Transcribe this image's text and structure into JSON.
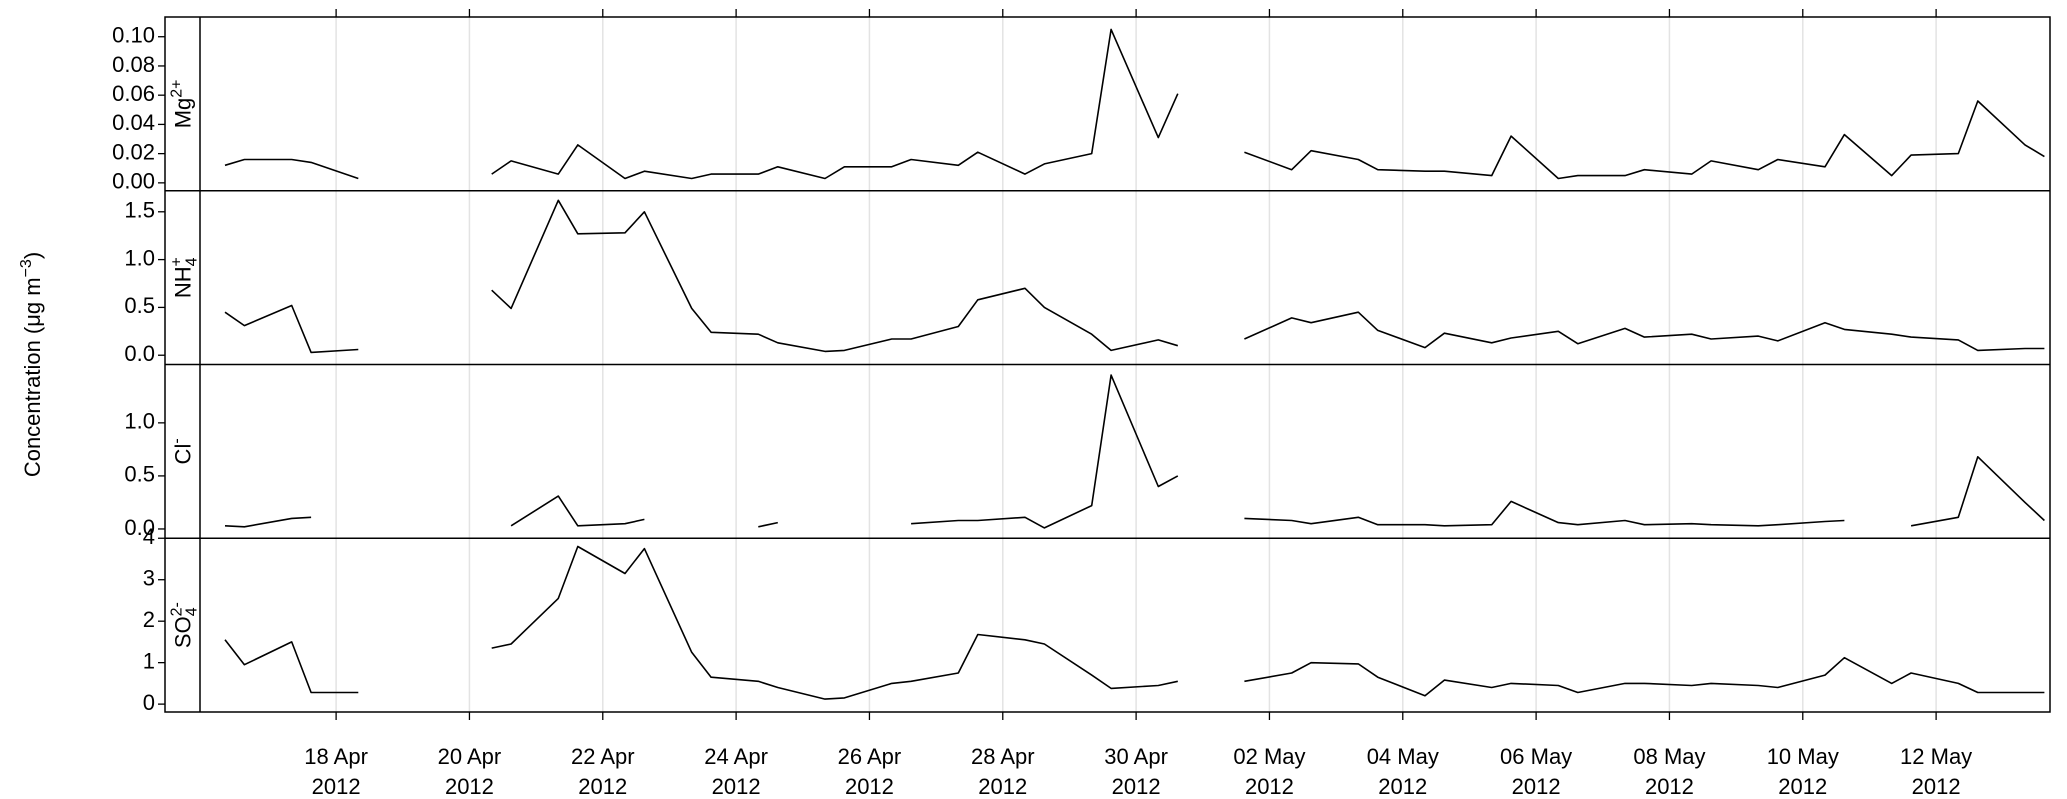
{
  "chart_data": {
    "type": "line",
    "y_label": {
      "base": "Concentration  (μg m",
      "sup": "−3",
      "tail": ")"
    },
    "grid": "x",
    "color": "#000000",
    "xlim": [
      "2012-04-15 23:00",
      "2012-05-13 17:00"
    ],
    "xticks": [
      {
        "value": "2012-04-18",
        "label": "18 Apr 2012"
      },
      {
        "value": "2012-04-20",
        "label": "20 Apr 2012"
      },
      {
        "value": "2012-04-22",
        "label": "22 Apr 2012"
      },
      {
        "value": "2012-04-24",
        "label": "24 Apr 2012"
      },
      {
        "value": "2012-04-26",
        "label": "26 Apr 2012"
      },
      {
        "value": "2012-04-28",
        "label": "28 Apr 2012"
      },
      {
        "value": "2012-04-30",
        "label": "30 Apr 2012"
      },
      {
        "value": "2012-05-02",
        "label": "02 May 2012"
      },
      {
        "value": "2012-05-04",
        "label": "04 May 2012"
      },
      {
        "value": "2012-05-06",
        "label": "06 May 2012"
      },
      {
        "value": "2012-05-08",
        "label": "08 May 2012"
      },
      {
        "value": "2012-05-10",
        "label": "10 May 2012"
      },
      {
        "value": "2012-05-12",
        "label": "12 May 2012"
      }
    ],
    "x": [
      "2012-04-16 08:00",
      "2012-04-16 15:00",
      "2012-04-17 08:00",
      "2012-04-17 15:00",
      "2012-04-18 08:00",
      "2012-04-18 15:00",
      "2012-04-19 08:00",
      "2012-04-19 15:00",
      "2012-04-20 08:00",
      "2012-04-20 15:00",
      "2012-04-21 08:00",
      "2012-04-21 15:00",
      "2012-04-22 08:00",
      "2012-04-22 15:00",
      "2012-04-23 08:00",
      "2012-04-23 15:00",
      "2012-04-24 08:00",
      "2012-04-24 15:00",
      "2012-04-25 08:00",
      "2012-04-25 15:00",
      "2012-04-26 08:00",
      "2012-04-26 15:00",
      "2012-04-27 08:00",
      "2012-04-27 15:00",
      "2012-04-28 08:00",
      "2012-04-28 15:00",
      "2012-04-29 08:00",
      "2012-04-29 15:00",
      "2012-04-30 08:00",
      "2012-04-30 15:00",
      "2012-05-01 08:00",
      "2012-05-01 15:00",
      "2012-05-02 08:00",
      "2012-05-02 15:00",
      "2012-05-03 08:00",
      "2012-05-03 15:00",
      "2012-05-04 08:00",
      "2012-05-04 15:00",
      "2012-05-05 08:00",
      "2012-05-05 15:00",
      "2012-05-06 08:00",
      "2012-05-06 15:00",
      "2012-05-07 08:00",
      "2012-05-07 15:00",
      "2012-05-08 08:00",
      "2012-05-08 15:00",
      "2012-05-09 08:00",
      "2012-05-09 15:00",
      "2012-05-10 08:00",
      "2012-05-10 15:00",
      "2012-05-11 08:00",
      "2012-05-11 15:00",
      "2012-05-12 08:00",
      "2012-05-12 15:00",
      "2012-05-13 08:00",
      "2012-05-13 15:00"
    ],
    "panels": [
      {
        "label": {
          "base": "Mg",
          "sup": "2+"
        },
        "ylim": [
          -0.0054,
          0.1135
        ],
        "yticks": [
          {
            "value": 0,
            "label": "0.00"
          },
          0.02,
          0.04,
          0.06,
          0.08,
          {
            "value": 0.1,
            "label": "0.10"
          }
        ],
        "values": [
          0.012,
          0.016,
          0.016,
          0.014,
          0.003,
          null,
          null,
          null,
          0.006,
          0.015,
          0.006,
          0.026,
          0.003,
          0.008,
          0.003,
          0.006,
          0.006,
          0.011,
          0.003,
          0.011,
          0.011,
          0.016,
          0.012,
          0.021,
          0.006,
          0.013,
          0.02,
          0.105,
          0.031,
          0.061,
          null,
          0.021,
          0.009,
          0.022,
          0.016,
          0.009,
          0.008,
          0.008,
          0.005,
          0.032,
          0.003,
          0.005,
          0.005,
          0.009,
          0.006,
          0.015,
          0.009,
          0.016,
          0.011,
          0.033,
          0.005,
          0.019,
          0.02,
          0.056,
          0.026,
          0.018
        ]
      },
      {
        "label": {
          "base": "NH",
          "sub": "4",
          "sup": "+"
        },
        "ylim": [
          -0.097,
          1.72
        ],
        "yticks": [
          {
            "value": 0,
            "label": "0.0"
          },
          0.5,
          {
            "value": 1,
            "label": "1.0"
          },
          1.5
        ],
        "values": [
          0.45,
          0.31,
          0.52,
          0.03,
          0.06,
          null,
          null,
          null,
          0.68,
          0.49,
          1.62,
          1.27,
          1.28,
          1.5,
          0.49,
          0.24,
          0.22,
          0.13,
          0.04,
          0.05,
          0.17,
          0.17,
          0.3,
          0.58,
          0.7,
          0.5,
          0.22,
          0.05,
          0.16,
          0.1,
          null,
          0.17,
          0.39,
          0.34,
          0.45,
          0.26,
          0.08,
          0.23,
          0.13,
          0.18,
          0.25,
          0.12,
          0.28,
          0.19,
          0.22,
          0.17,
          0.2,
          0.15,
          0.34,
          0.27,
          0.22,
          0.19,
          0.16,
          0.05,
          0.07,
          0.07
        ]
      },
      {
        "label": {
          "base": "Cl",
          "sup": "-"
        },
        "ylim": [
          -0.0875,
          1.55
        ],
        "yticks": [
          {
            "value": 0,
            "label": "0.0"
          },
          0.5,
          {
            "value": 1,
            "label": "1.0"
          }
        ],
        "values": [
          0.03,
          0.02,
          0.1,
          0.11,
          null,
          null,
          null,
          null,
          null,
          0.03,
          0.31,
          0.03,
          0.05,
          0.09,
          null,
          null,
          0.02,
          0.06,
          null,
          null,
          null,
          0.05,
          0.08,
          0.08,
          0.11,
          0.01,
          0.22,
          1.45,
          0.4,
          0.5,
          null,
          0.1,
          0.08,
          0.05,
          0.11,
          0.04,
          0.04,
          0.03,
          0.04,
          0.26,
          0.06,
          0.04,
          0.08,
          0.04,
          0.05,
          0.04,
          0.03,
          0.04,
          0.07,
          0.08,
          null,
          0.03,
          0.11,
          0.68,
          0.25,
          0.08
        ]
      },
      {
        "label": {
          "base": "SO",
          "sub": "4",
          "sup": "2-"
        },
        "ylim": [
          -0.19,
          4.0
        ],
        "yticks": [
          0,
          1,
          2,
          3,
          4
        ],
        "values": [
          1.55,
          0.95,
          1.5,
          0.28,
          0.28,
          null,
          null,
          null,
          1.35,
          1.45,
          2.55,
          3.8,
          3.15,
          3.75,
          1.25,
          0.65,
          0.55,
          0.4,
          0.12,
          0.15,
          0.5,
          0.55,
          0.75,
          1.68,
          1.55,
          1.45,
          0.7,
          0.38,
          0.45,
          0.55,
          null,
          0.55,
          0.75,
          1.0,
          0.97,
          0.65,
          0.2,
          0.58,
          0.4,
          0.5,
          0.45,
          0.28,
          0.5,
          0.5,
          0.45,
          0.5,
          0.45,
          0.4,
          0.7,
          1.12,
          0.5,
          0.75,
          0.5,
          0.28,
          0.28,
          0.28
        ]
      }
    ]
  }
}
